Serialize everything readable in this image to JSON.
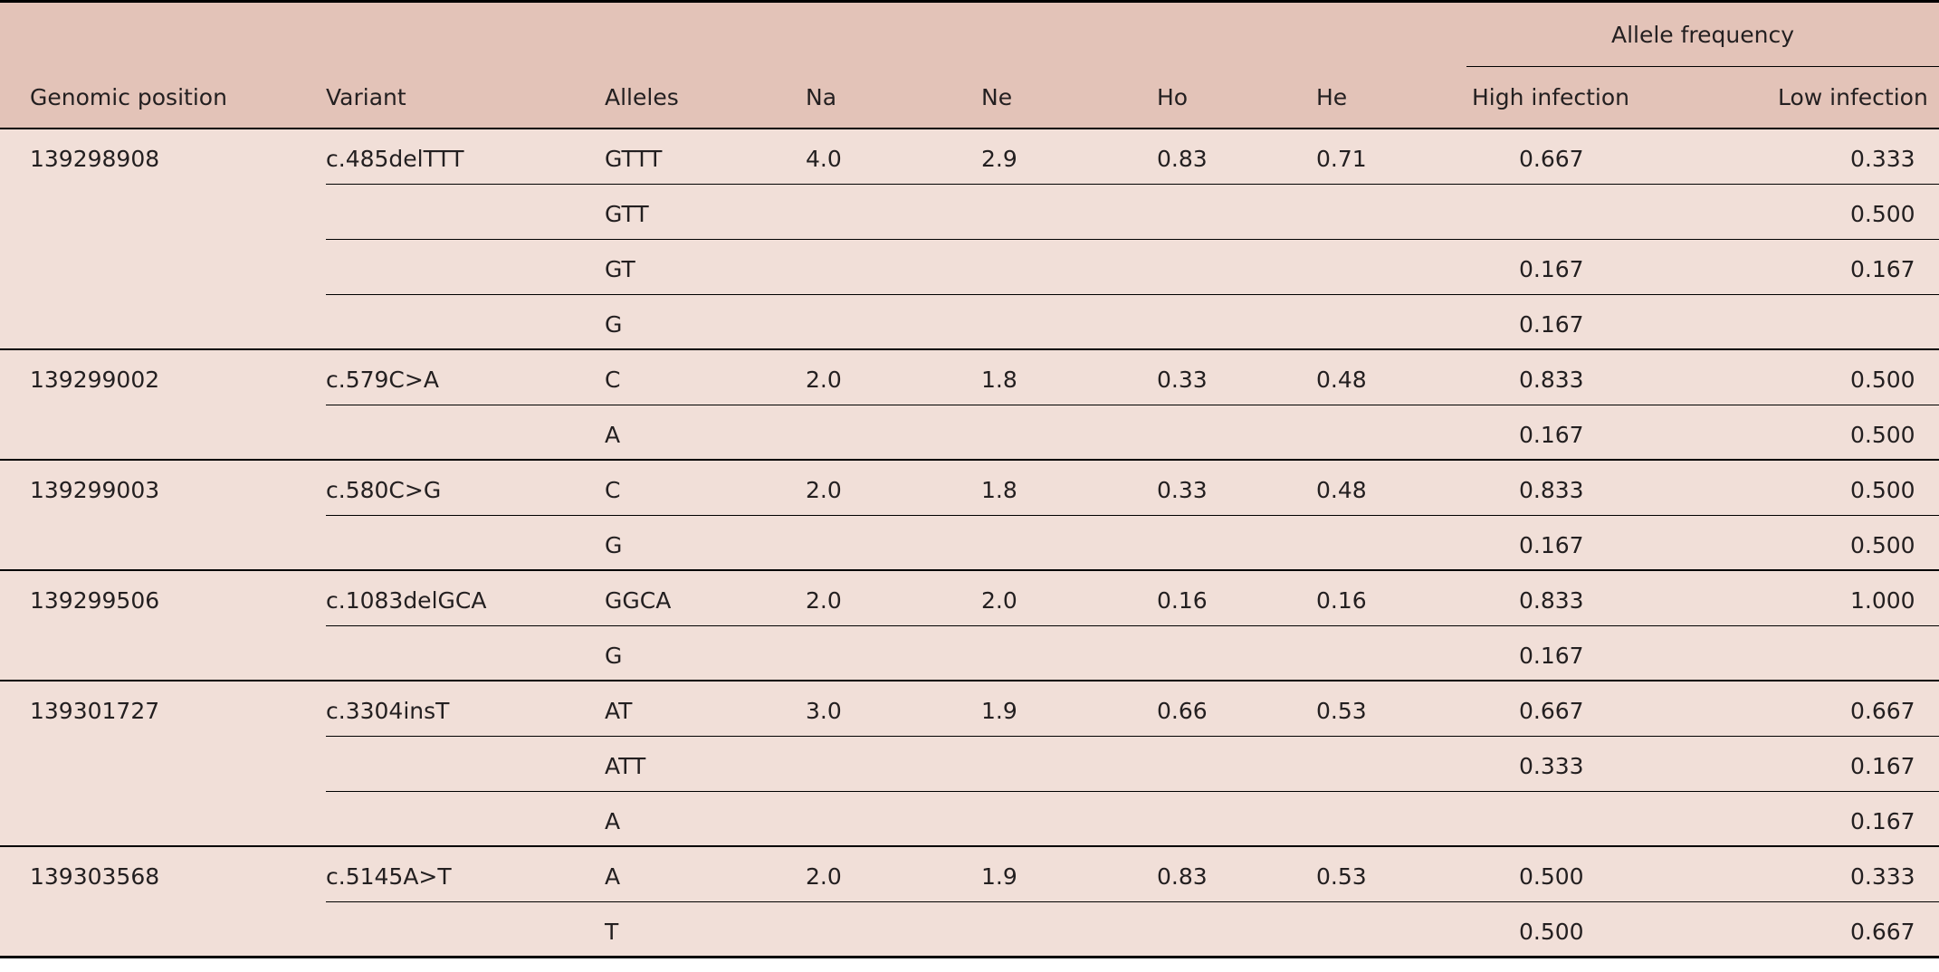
{
  "table": {
    "headers": {
      "genomic_position": "Genomic position",
      "variant": "Variant",
      "alleles": "Alleles",
      "na": "Na",
      "ne": "Ne",
      "ho": "Ho",
      "he": "He",
      "allele_frequency": "Allele frequency",
      "high_infection": "High infection",
      "low_infection": "Low infection"
    },
    "groups": [
      {
        "position": "139298908",
        "variant": "c.485delTTT",
        "na": "4.0",
        "ne": "2.9",
        "ho": "0.83",
        "he": "0.71",
        "rows": [
          {
            "allele": "GTTT",
            "high": "0.667",
            "low": "0.333"
          },
          {
            "allele": "GTT",
            "high": "",
            "low": "0.500"
          },
          {
            "allele": "GT",
            "high": "0.167",
            "low": "0.167"
          },
          {
            "allele": "G",
            "high": "0.167",
            "low": ""
          }
        ]
      },
      {
        "position": "139299002",
        "variant": "c.579C>A",
        "na": "2.0",
        "ne": "1.8",
        "ho": "0.33",
        "he": "0.48",
        "rows": [
          {
            "allele": "C",
            "high": "0.833",
            "low": "0.500"
          },
          {
            "allele": "A",
            "high": "0.167",
            "low": "0.500"
          }
        ]
      },
      {
        "position": "139299003",
        "variant": "c.580C>G",
        "na": "2.0",
        "ne": "1.8",
        "ho": "0.33",
        "he": "0.48",
        "rows": [
          {
            "allele": "C",
            "high": "0.833",
            "low": "0.500"
          },
          {
            "allele": "G",
            "high": "0.167",
            "low": "0.500"
          }
        ]
      },
      {
        "position": "139299506",
        "variant": "c.1083delGCA",
        "na": "2.0",
        "ne": "2.0",
        "ho": "0.16",
        "he": "0.16",
        "rows": [
          {
            "allele": "GGCA",
            "high": "0.833",
            "low": "1.000"
          },
          {
            "allele": "G",
            "high": "0.167",
            "low": ""
          }
        ]
      },
      {
        "position": "139301727",
        "variant": "c.3304insT",
        "na": "3.0",
        "ne": "1.9",
        "ho": "0.66",
        "he": "0.53",
        "rows": [
          {
            "allele": "AT",
            "high": "0.667",
            "low": "0.667"
          },
          {
            "allele": "ATT",
            "high": "0.333",
            "low": "0.167"
          },
          {
            "allele": "A",
            "high": "",
            "low": "0.167"
          }
        ]
      },
      {
        "position": "139303568",
        "variant": "c.5145A>T",
        "na": "2.0",
        "ne": "1.9",
        "ho": "0.83",
        "he": "0.53",
        "rows": [
          {
            "allele": "A",
            "high": "0.500",
            "low": "0.333"
          },
          {
            "allele": "T",
            "high": "0.500",
            "low": "0.667"
          }
        ]
      }
    ]
  },
  "colors": {
    "header_bg": "#e3c3b8",
    "body_bg": "#f1dfd8",
    "rule": "#000000"
  }
}
